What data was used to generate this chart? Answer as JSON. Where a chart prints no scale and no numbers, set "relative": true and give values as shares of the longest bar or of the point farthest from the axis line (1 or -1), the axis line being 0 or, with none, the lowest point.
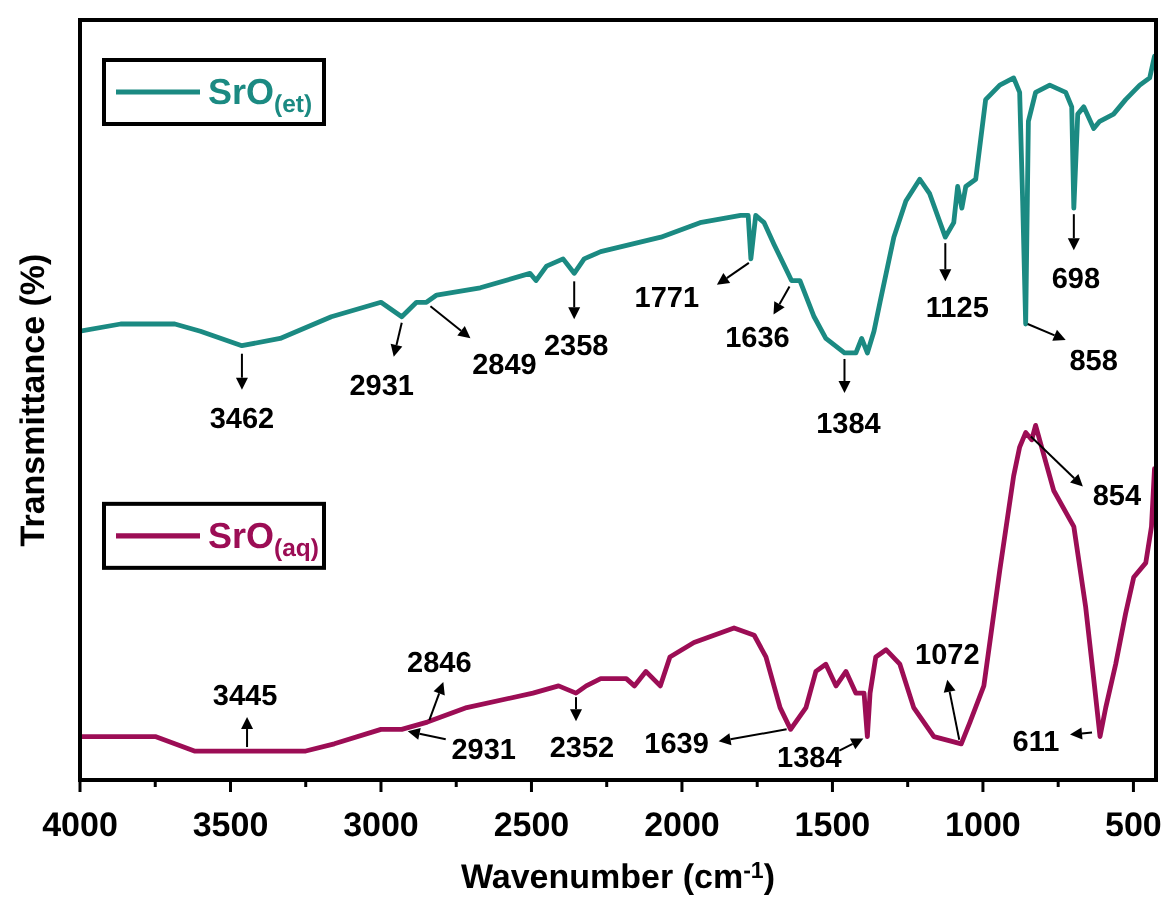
{
  "chart_data": {
    "type": "line",
    "relative": true,
    "xlabel": "Wavenumber (cm$^{-1}$)",
    "ylabel": "Transmittance (%)",
    "xlim": [
      4000,
      425
    ],
    "xticks": [
      4000,
      {
        "value": 3750,
        "label": null
      },
      3500,
      {
        "value": 3250,
        "label": null
      },
      3000,
      {
        "value": 2750,
        "label": null
      },
      2500,
      {
        "value": 2250,
        "label": null
      },
      2000,
      {
        "value": 1750,
        "label": null
      },
      1500,
      {
        "value": 1250,
        "label": null
      },
      1000,
      {
        "value": 750,
        "label": null
      },
      500
    ],
    "legend": "left",
    "series": [
      {
        "name": "SrO$_{(et)}$",
        "color": "#1b8a82",
        "x": [
          4000,
          3865,
          3685,
          3600,
          3462,
          3335,
          3165,
          3000,
          2931,
          2882,
          2849,
          2815,
          2670,
          2505,
          2485,
          2450,
          2395,
          2358,
          2325,
          2270,
          2170,
          2070,
          1940,
          1805,
          1780,
          1771,
          1755,
          1727,
          1694,
          1636,
          1608,
          1561,
          1522,
          1460,
          1422,
          1403,
          1384,
          1362,
          1342,
          1296,
          1256,
          1210,
          1177,
          1125,
          1097,
          1084,
          1070,
          1057,
          1024,
          991,
          944,
          898,
          878,
          868,
          858,
          849,
          825,
          778,
          725,
          705,
          698,
          685,
          665,
          632,
          612,
          566,
          526,
          479,
          446,
          430
        ],
        "values": [
          0.62,
          0.63,
          0.63,
          0.62,
          0.6,
          0.61,
          0.64,
          0.66,
          0.64,
          0.66,
          0.66,
          0.67,
          0.68,
          0.7,
          0.69,
          0.71,
          0.72,
          0.7,
          0.72,
          0.73,
          0.74,
          0.75,
          0.77,
          0.78,
          0.78,
          0.72,
          0.78,
          0.77,
          0.74,
          0.69,
          0.69,
          0.64,
          0.61,
          0.59,
          0.59,
          0.61,
          0.59,
          0.62,
          0.66,
          0.75,
          0.8,
          0.83,
          0.81,
          0.75,
          0.77,
          0.82,
          0.79,
          0.82,
          0.83,
          0.94,
          0.96,
          0.97,
          0.95,
          0.8,
          0.63,
          0.91,
          0.95,
          0.96,
          0.95,
          0.93,
          0.79,
          0.92,
          0.93,
          0.9,
          0.91,
          0.92,
          0.94,
          0.96,
          0.97,
          1.0
        ]
      },
      {
        "name": "SrO$_{(aq)}$",
        "color": "#9c0d55",
        "x": [
          4000,
          3750,
          3685,
          3620,
          3445,
          3250,
          3155,
          3000,
          2931,
          2846,
          2715,
          2495,
          2410,
          2352,
          2318,
          2270,
          2185,
          2158,
          2120,
          2072,
          2040,
          1960,
          1827,
          1760,
          1721,
          1674,
          1639,
          1588,
          1555,
          1522,
          1488,
          1455,
          1422,
          1395,
          1384,
          1375,
          1356,
          1322,
          1276,
          1230,
          1163,
          1072,
          1043,
          997,
          944,
          898,
          878,
          858,
          838,
          825,
          805,
          765,
          698,
          659,
          632,
          611,
          592,
          559,
          526,
          499,
          459,
          440,
          430
        ],
        "values": [
          0.06,
          0.06,
          0.05,
          0.04,
          0.04,
          0.04,
          0.05,
          0.07,
          0.07,
          0.08,
          0.1,
          0.12,
          0.13,
          0.12,
          0.13,
          0.14,
          0.14,
          0.13,
          0.15,
          0.13,
          0.17,
          0.19,
          0.21,
          0.2,
          0.17,
          0.1,
          0.07,
          0.1,
          0.15,
          0.16,
          0.13,
          0.15,
          0.12,
          0.12,
          0.06,
          0.12,
          0.17,
          0.18,
          0.16,
          0.1,
          0.06,
          0.05,
          0.08,
          0.13,
          0.29,
          0.42,
          0.46,
          0.48,
          0.47,
          0.49,
          0.46,
          0.4,
          0.35,
          0.24,
          0.14,
          0.06,
          0.1,
          0.16,
          0.23,
          0.28,
          0.3,
          0.35,
          0.43
        ]
      }
    ],
    "annotations": [
      {
        "text": "3462",
        "x": 3462,
        "y": 0.6
      },
      {
        "text": "2931",
        "x": 2931,
        "y": 0.64
      },
      {
        "text": "2849",
        "x": 2849,
        "y": 0.66
      },
      {
        "text": "2358",
        "x": 2358,
        "y": 0.7
      },
      {
        "text": "1771",
        "x": 1771,
        "y": 0.72
      },
      {
        "text": "1636",
        "x": 1636,
        "y": 0.69
      },
      {
        "text": "1384",
        "x": 1460,
        "y": 0.59
      },
      {
        "text": "1125",
        "x": 1125,
        "y": 0.75
      },
      {
        "text": "858",
        "x": 858,
        "y": 0.63
      },
      {
        "text": "698",
        "x": 698,
        "y": 0.79
      },
      {
        "text": "3445",
        "x": 3445,
        "y": 0.04
      },
      {
        "text": "2846",
        "x": 2846,
        "y": 0.08
      },
      {
        "text": "2931",
        "x": 2931,
        "y": 0.07
      },
      {
        "text": "2352",
        "x": 2352,
        "y": 0.12
      },
      {
        "text": "1639",
        "x": 1639,
        "y": 0.07
      },
      {
        "text": "1384",
        "x": 1384,
        "y": 0.06
      },
      {
        "text": "1072",
        "x": 1072,
        "y": 0.05
      },
      {
        "text": "854",
        "x": 854,
        "y": 0.48
      },
      {
        "text": "611",
        "x": 611,
        "y": 0.06
      }
    ]
  }
}
